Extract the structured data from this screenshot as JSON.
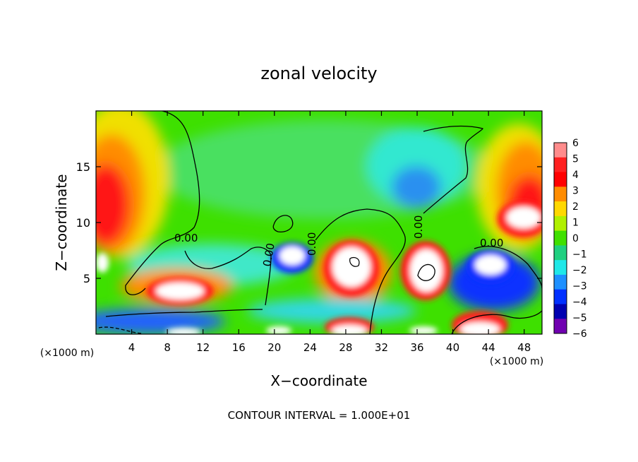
{
  "chart_data": {
    "type": "heatmap",
    "title": "zonal velocity",
    "xlabel": "X−coordinate",
    "ylabel": "Z−coordinate",
    "x_unit_left": "(×1000 m)",
    "x_unit_right": "(×1000 m)",
    "xlim": [
      0,
      50
    ],
    "ylim": [
      0,
      20
    ],
    "x_ticks": [
      4,
      8,
      12,
      16,
      20,
      24,
      28,
      32,
      36,
      40,
      44,
      48
    ],
    "y_ticks": [
      5,
      10,
      15
    ],
    "footer": "CONTOUR INTERVAL = 1.000E+01",
    "contour_labels": [
      "0.00",
      "0.00",
      "0.00",
      "0.00",
      "0.00"
    ],
    "colorbar": {
      "levels": [
        6,
        5,
        4,
        3,
        2,
        1,
        0,
        -1,
        -2,
        -3,
        -4,
        -5,
        -6
      ],
      "colors": [
        "#ff8c8c",
        "#ff2020",
        "#ff0000",
        "#ff8c00",
        "#ffd800",
        "#b0f000",
        "#40e000",
        "#20d080",
        "#20e8e8",
        "#1e90ff",
        "#0030ff",
        "#0000b0",
        "#7000b0"
      ]
    }
  }
}
